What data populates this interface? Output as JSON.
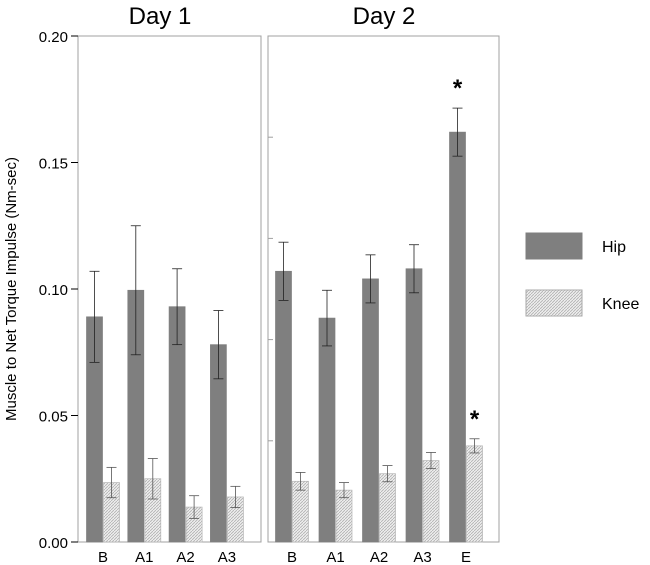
{
  "chart_data": {
    "type": "bar",
    "ylabel": "Muscle to Net Torque Impulse (Nm-sec)",
    "ylim": [
      0,
      0.2
    ],
    "yticks": [
      "0.00",
      "0.05",
      "0.10",
      "0.15",
      "0.20"
    ],
    "legend": {
      "placement": "right",
      "entries": [
        {
          "name": "Hip",
          "color": "#7f7f7f",
          "pattern": "solid"
        },
        {
          "name": "Knee",
          "color": "#e8e8e8",
          "pattern": "hatched"
        }
      ]
    },
    "panels": [
      {
        "title": "Day 1",
        "categories": [
          "B",
          "A1",
          "A2",
          "A3"
        ],
        "series": [
          {
            "name": "Hip",
            "values": [
              0.089,
              0.0995,
              0.093,
              0.078
            ],
            "errors": [
              0.018,
              0.0255,
              0.015,
              0.0135
            ]
          },
          {
            "name": "Knee",
            "values": [
              0.0235,
              0.025,
              0.0138,
              0.0178
            ],
            "errors": [
              0.006,
              0.008,
              0.0045,
              0.0042
            ]
          }
        ],
        "annotations": []
      },
      {
        "title": "Day 2",
        "categories": [
          "B",
          "A1",
          "A2",
          "A3",
          "E"
        ],
        "series": [
          {
            "name": "Hip",
            "values": [
              0.107,
              0.0885,
              0.104,
              0.108,
              0.162
            ],
            "errors": [
              0.0115,
              0.011,
              0.0095,
              0.0095,
              0.0095
            ]
          },
          {
            "name": "Knee",
            "values": [
              0.024,
              0.0205,
              0.027,
              0.0322,
              0.038
            ],
            "errors": [
              0.0035,
              0.003,
              0.0032,
              0.0032,
              0.0028
            ]
          }
        ],
        "annotations": [
          {
            "text": "*",
            "category": "E",
            "series": "Hip"
          },
          {
            "text": "*",
            "category": "E",
            "series": "Knee"
          }
        ]
      }
    ],
    "grid": false
  }
}
